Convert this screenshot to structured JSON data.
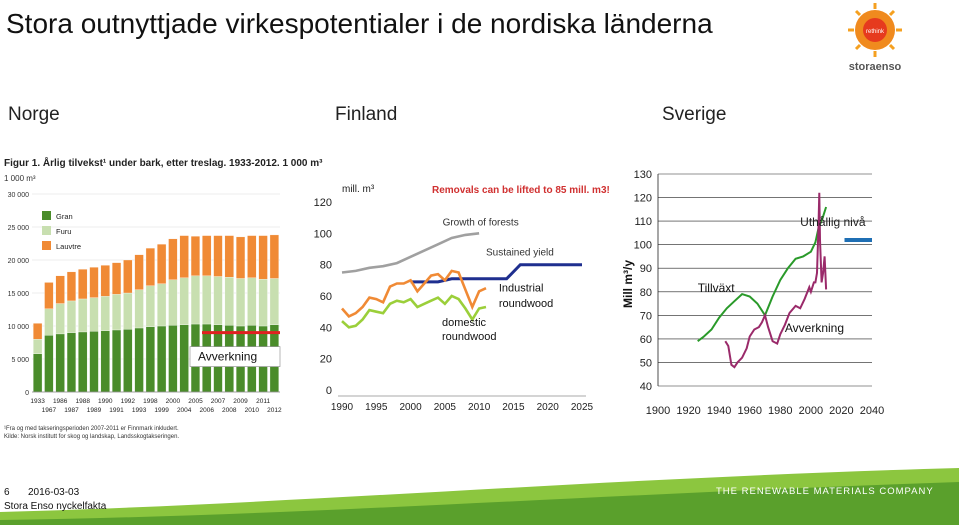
{
  "title": "Stora outnyttjade virkespotentialer i de nordiska länderna",
  "logo": {
    "text": "storaenso",
    "badge": "rethink"
  },
  "countries": [
    "Norge",
    "Finland",
    "Sverige"
  ],
  "footer": {
    "page": "6",
    "date": "2016-03-03",
    "source": "Stora Enso nyckelfakta",
    "tagline": "THE RENEWABLE MATERIALS COMPANY"
  },
  "chart_data": [
    {
      "type": "bar",
      "title": "Figur 1. Årlig tilvekst¹ under bark, etter treslag. 1933-2012. 1 000 m³",
      "ylabel": "1 000 m³",
      "ylim": [
        0,
        30000
      ],
      "yticks": [
        "0",
        "5 000",
        "10 000",
        "15 000",
        "20 000",
        "25 000",
        "30 000"
      ],
      "categories_row1": [
        "1933",
        "1986",
        "1988",
        "1990",
        "1992",
        "1998",
        "2000",
        "2005",
        "2007",
        "2009",
        "2011"
      ],
      "categories_row2": [
        "1967",
        "1987",
        "1989",
        "1991",
        "1993",
        "1999",
        "2004",
        "2006",
        "2008",
        "2010",
        "2012"
      ],
      "series": [
        {
          "name": "Gran",
          "color": "#4a8c2a",
          "values": [
            5800,
            8600,
            8800,
            9000,
            9100,
            9200,
            9300,
            9400,
            9500,
            9700,
            9900,
            10000,
            10100,
            10200,
            10300,
            10300,
            10200,
            10100,
            10000,
            10100,
            10000,
            10200
          ]
        },
        {
          "name": "Furu",
          "color": "#c8dfb0",
          "values": [
            2200,
            4000,
            4600,
            4800,
            5000,
            5100,
            5200,
            5400,
            5500,
            5800,
            6200,
            6400,
            6900,
            7100,
            7300,
            7300,
            7300,
            7300,
            7200,
            7200,
            7100,
            7000
          ]
        },
        {
          "name": "Lauvtre",
          "color": "#f08a35",
          "values": [
            2400,
            4000,
            4200,
            4400,
            4500,
            4600,
            4700,
            4800,
            5000,
            5300,
            5700,
            6000,
            6200,
            6400,
            6000,
            6100,
            6200,
            6300,
            6300,
            6400,
            6600,
            6600
          ]
        }
      ],
      "annotation": {
        "label": "Avverkning",
        "value": 9000,
        "color": "#e02020"
      },
      "footnote": [
        "¹Fra og med takseringsperioden 2007-2011 er Finnmark inkludert.",
        "Kilde: Norsk institutt for skog og landskap, Landsskogtakseringen."
      ]
    },
    {
      "type": "line",
      "unit": "mill. m³",
      "xlim": [
        1990,
        2025
      ],
      "ylim": [
        0,
        120
      ],
      "xticks": [
        "1990",
        "1995",
        "2000",
        "2005",
        "2010",
        "2015",
        "2020",
        "2025"
      ],
      "yticks": [
        "0",
        "20",
        "40",
        "60",
        "80",
        "100",
        "120"
      ],
      "headline": "Removals can be lifted to 85 mill. m3!",
      "series": [
        {
          "name": "Growth of forests",
          "color": "#a0a0a0",
          "x": [
            1990,
            1992,
            1994,
            1996,
            1998,
            2000,
            2002,
            2004,
            2006,
            2008,
            2010
          ],
          "values": [
            75,
            76,
            78,
            79,
            81,
            85,
            89,
            93,
            97,
            99,
            100
          ]
        },
        {
          "name": "Sustained yield",
          "color": "#1f2f8f",
          "x": [
            2000,
            2004,
            2006,
            2010,
            2012,
            2014,
            2016,
            2018,
            2020,
            2022,
            2025
          ],
          "values": [
            69,
            69,
            71,
            71,
            71,
            71,
            80,
            80,
            80,
            80,
            80
          ]
        },
        {
          "name": "Industrial roundwood",
          "color": "#f08a35",
          "x": [
            1990,
            1991,
            1992,
            1993,
            1994,
            1995,
            1996,
            1997,
            1998,
            1999,
            2000,
            2001,
            2002,
            2003,
            2004,
            2005,
            2006,
            2007,
            2008,
            2009,
            2010,
            2011
          ],
          "values": [
            52,
            47,
            49,
            53,
            59,
            58,
            56,
            66,
            68,
            68,
            70,
            63,
            68,
            73,
            74,
            70,
            76,
            75,
            64,
            53,
            63,
            65
          ]
        },
        {
          "name": "domestic roundwood",
          "color": "#9bcf3a",
          "x": [
            1990,
            1991,
            1992,
            1993,
            1994,
            1995,
            1996,
            1997,
            1998,
            1999,
            2000,
            2001,
            2002,
            2003,
            2004,
            2005,
            2006,
            2007,
            2008,
            2009,
            2010,
            2011
          ],
          "values": [
            44,
            40,
            41,
            45,
            51,
            50,
            49,
            55,
            57,
            56,
            58,
            53,
            55,
            57,
            59,
            55,
            60,
            58,
            52,
            45,
            52,
            53
          ]
        }
      ]
    },
    {
      "type": "line",
      "ylabel": "Mill m³/y",
      "xlim": [
        1900,
        2040
      ],
      "ylim": [
        40,
        130
      ],
      "xticks": [
        "1900",
        "1920",
        "1940",
        "1960",
        "1980",
        "2000",
        "2020",
        "2040"
      ],
      "yticks": [
        "40",
        "50",
        "60",
        "70",
        "80",
        "90",
        "100",
        "110",
        "120",
        "130"
      ],
      "series": [
        {
          "name": "Tillväxt",
          "color": "#2a9a2a",
          "x": [
            1926,
            1930,
            1935,
            1940,
            1945,
            1950,
            1955,
            1960,
            1965,
            1970,
            1975,
            1980,
            1985,
            1990,
            1995,
            2000,
            2003,
            2005,
            2008,
            2010
          ],
          "values": [
            59,
            61,
            64,
            69,
            73,
            76,
            79,
            78,
            75,
            70,
            78,
            85,
            90,
            94,
            95,
            97,
            101,
            107,
            112,
            116
          ]
        },
        {
          "name": "Avverkning",
          "color": "#9a2a6a",
          "x": [
            1944,
            1946,
            1948,
            1950,
            1952,
            1955,
            1958,
            1960,
            1963,
            1966,
            1968,
            1970,
            1972,
            1975,
            1978,
            1980,
            1983,
            1986,
            1990,
            1993,
            1996,
            1999,
            2000,
            2002,
            2003,
            2004,
            2005,
            2005.5,
            2006,
            2007,
            2008,
            2009,
            2010
          ],
          "values": [
            59,
            57,
            49,
            48,
            50,
            52,
            56,
            61,
            64,
            65,
            67,
            70,
            65,
            59,
            58,
            62,
            66,
            71,
            74,
            73,
            77,
            82,
            80,
            84,
            84,
            88,
            108,
            122,
            102,
            84,
            88,
            95,
            81
          ]
        },
        {
          "name": "Uthållig nivå",
          "color": "#1f6fb4",
          "x": [
            2022,
            2040
          ],
          "values": [
            102,
            102
          ]
        }
      ],
      "labels": {
        "growth": "Tillväxt",
        "harvest": "Avverkning",
        "sustainable": "Uthållig nivå"
      }
    }
  ]
}
